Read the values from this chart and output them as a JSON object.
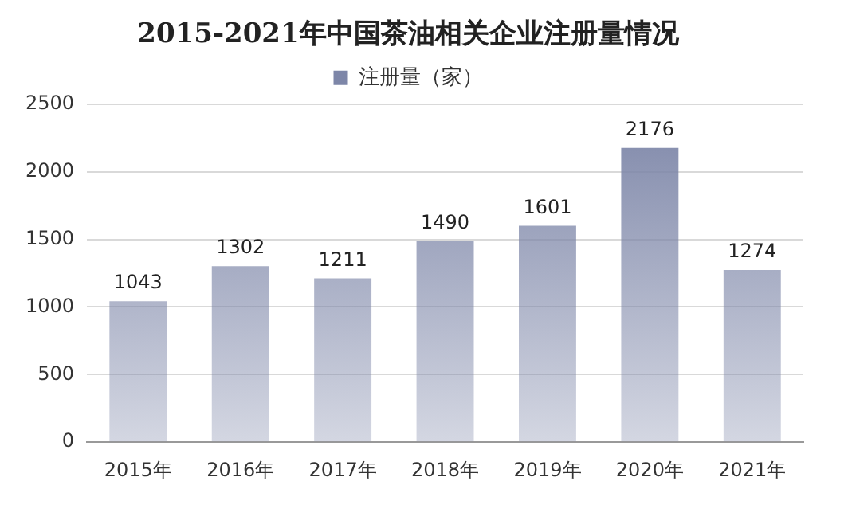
{
  "chart_data": {
    "type": "bar",
    "title": "2015-2021年中国茶油相关企业注册量情况",
    "categories": [
      "2015年",
      "2016年",
      "2017年",
      "2018年",
      "2019年",
      "2020年",
      "2021年"
    ],
    "series": [
      {
        "name": "注册量（家）",
        "color": "#7d86a8",
        "values": [
          1043,
          1302,
          1211,
          1490,
          1601,
          2176,
          1274
        ]
      }
    ],
    "ylim": [
      0,
      2500
    ],
    "yticks": [
      0,
      500,
      1000,
      1500,
      2000,
      2500
    ],
    "grid": "y",
    "legend": "top",
    "data_labels": true
  }
}
